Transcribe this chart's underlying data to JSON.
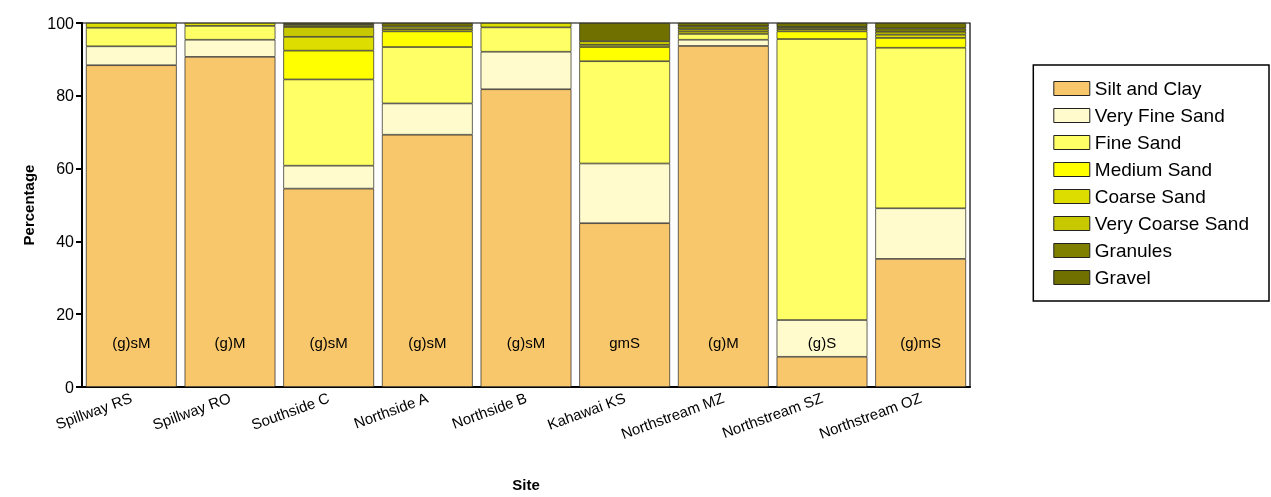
{
  "chart_data": {
    "type": "bar",
    "stacked": true,
    "xlabel": "Site",
    "ylabel": "Percentage",
    "categories": [
      "Spillway RS",
      "Spillway RO",
      "Southside C",
      "Northside A",
      "Northside B",
      "Kahawai KS",
      "Northstream MZ",
      "Northstream SZ",
      "Northstream OZ"
    ],
    "series": [
      {
        "name": "Silt and Clay",
        "color": "#f9c76b",
        "values": [
          88.4,
          90.7,
          54.5,
          69.3,
          81.8,
          45.0,
          93.7,
          8.3,
          35.2
        ]
      },
      {
        "name": "Very Fine Sand",
        "color": "#fffbcc",
        "values": [
          5.2,
          4.7,
          6.3,
          8.6,
          10.3,
          16.4,
          1.7,
          10.1,
          13.9
        ]
      },
      {
        "name": "Fine Sand",
        "color": "#ffff66",
        "values": [
          5.1,
          3.8,
          23.7,
          15.5,
          6.7,
          28.1,
          1.6,
          77.2,
          44.1
        ]
      },
      {
        "name": "Medium Sand",
        "color": "#ffff00",
        "values": [
          0,
          0,
          7.9,
          4.3,
          0,
          3.9,
          0.6,
          2.1,
          2.7
        ]
      },
      {
        "name": "Coarse Sand",
        "color": "#dddd00",
        "values": [
          1.3,
          0.8,
          3.8,
          0.6,
          1.2,
          0.6,
          0.6,
          0.6,
          0.9
        ]
      },
      {
        "name": "Very Coarse Sand",
        "color": "#c8c800",
        "values": [
          0,
          0,
          2.7,
          0.7,
          0,
          1.0,
          0,
          0,
          0.8
        ]
      },
      {
        "name": "Granules",
        "color": "#808000",
        "values": [
          0,
          0,
          0.6,
          0,
          0,
          0,
          0.9,
          0.6,
          0.9
        ]
      },
      {
        "name": "Gravel",
        "color": "#707000",
        "values": [
          0,
          0,
          0.5,
          1.0,
          0,
          5.0,
          0.9,
          1.1,
          1.5
        ]
      }
    ],
    "ylim": [
      0,
      100
    ],
    "yticks": [
      0,
      20,
      40,
      60,
      80,
      100
    ],
    "grid": false,
    "legend": "right",
    "annotations": [
      "(g)sM",
      "(g)M",
      "(g)sM",
      "(g)sM",
      "(g)sM",
      "gmS",
      "(g)M",
      "(g)S",
      "(g)mS"
    ]
  }
}
